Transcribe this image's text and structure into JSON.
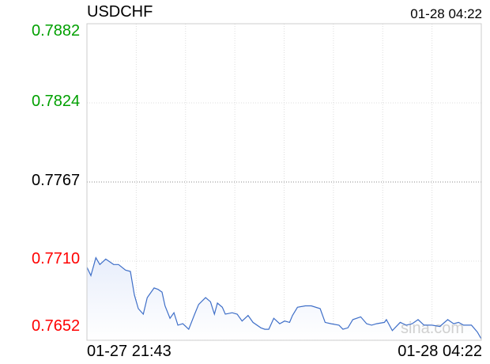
{
  "header": {
    "symbol": "USDCHF",
    "timestamp": "01-28 04:22"
  },
  "watermark": "sina.com",
  "colors": {
    "line": "#3f6fc8",
    "up": "#00a000",
    "neutral": "#000000",
    "down": "#ff0000",
    "fill": "#eef3fc"
  },
  "chart_data": {
    "type": "area",
    "title": "USDCHF",
    "xlabel": "",
    "ylabel": "",
    "ylim": [
      0.7652,
      0.7882
    ],
    "xlim": [
      "21:43",
      "04:22"
    ],
    "previous_close": 0.7767,
    "y_ticks": [
      "0.7882",
      "0.7824",
      "0.7767",
      "0.7710",
      "0.7652"
    ],
    "x_tick_labels": [
      "01-27 21:43",
      "01-28 04:22"
    ],
    "grid": true,
    "series": [
      {
        "x": [
          "21:43",
          "21:47",
          "21:52",
          "21:56",
          "22:02",
          "22:10",
          "22:15",
          "22:22",
          "22:27",
          "22:31",
          "22:35",
          "22:40",
          "22:44",
          "22:51",
          "22:55",
          "22:59",
          "23:02",
          "23:07",
          "23:11",
          "23:15",
          "23:20",
          "23:26",
          "23:32",
          "23:36",
          "23:43",
          "23:48",
          "23:52",
          "23:55",
          "00:00",
          "00:03",
          "00:10",
          "00:15",
          "00:20",
          "00:26",
          "00:31",
          "00:39",
          "00:43",
          "00:47",
          "00:52",
          "00:58",
          "01:03",
          "01:08",
          "01:11",
          "01:16",
          "01:24",
          "01:30",
          "01:39",
          "01:44",
          "01:50",
          "01:58",
          "02:02",
          "02:07",
          "02:12",
          "02:20",
          "02:26",
          "02:31",
          "02:36",
          "02:44",
          "02:46",
          "02:52",
          "03:00",
          "03:06",
          "03:12",
          "03:18",
          "03:24",
          "03:32",
          "03:40",
          "03:48",
          "03:54",
          "03:59",
          "04:04",
          "04:12",
          "04:18",
          "04:22"
        ],
        "values": [
          0.7705,
          0.7699,
          0.7712,
          0.7707,
          0.7711,
          0.7707,
          0.7707,
          0.7703,
          0.7702,
          0.7685,
          0.7675,
          0.7671,
          0.7683,
          0.769,
          0.7689,
          0.7687,
          0.7677,
          0.7668,
          0.7672,
          0.7663,
          0.7664,
          0.766,
          0.7671,
          0.7678,
          0.7683,
          0.768,
          0.7671,
          0.7679,
          0.7676,
          0.7671,
          0.7672,
          0.7671,
          0.7666,
          0.767,
          0.7665,
          0.7661,
          0.766,
          0.766,
          0.7668,
          0.7664,
          0.7666,
          0.7665,
          0.767,
          0.7676,
          0.7677,
          0.7677,
          0.7675,
          0.7665,
          0.7664,
          0.7663,
          0.766,
          0.7661,
          0.7667,
          0.7669,
          0.7664,
          0.7663,
          0.7664,
          0.7665,
          0.7667,
          0.7659,
          0.7665,
          0.7663,
          0.7664,
          0.7667,
          0.7663,
          0.7663,
          0.7662,
          0.7667,
          0.7664,
          0.7665,
          0.7663,
          0.7663,
          0.7658,
          0.7653
        ]
      }
    ]
  }
}
